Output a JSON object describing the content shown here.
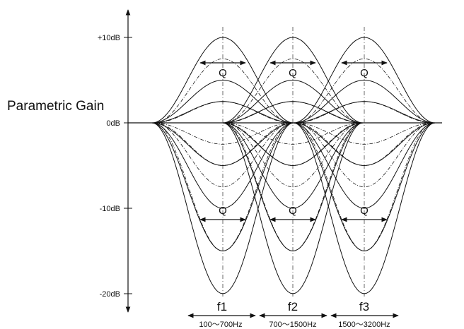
{
  "axis": {
    "title": "Parametric Gain",
    "ticks": [
      "+10dB",
      "0dB",
      "-10dB",
      "-20dB"
    ]
  },
  "q_label": "Q",
  "bands": [
    {
      "name": "f1",
      "range": "100～700Hz"
    },
    {
      "name": "f2",
      "range": "700～1500Hz"
    },
    {
      "name": "f3",
      "range": "1500～3200Hz"
    }
  ],
  "colors": {
    "ink": "#111111",
    "background": "#ffffff"
  }
}
